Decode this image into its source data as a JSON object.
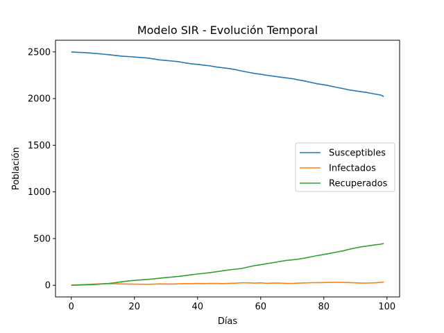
{
  "chart_data": {
    "type": "line",
    "title": "Modelo SIR - Evolución Temporal",
    "xlabel": "Días",
    "ylabel": "Población",
    "xlim": [
      -5,
      104
    ],
    "ylim": [
      -125,
      2625
    ],
    "xticks": [
      0,
      20,
      40,
      60,
      80,
      100
    ],
    "yticks": [
      0,
      500,
      1000,
      1500,
      2000,
      2500
    ],
    "grid": false,
    "legend_position": "center-right",
    "x": [
      0,
      2,
      4,
      6,
      8,
      10,
      12,
      14,
      16,
      18,
      20,
      22,
      24,
      26,
      28,
      30,
      32,
      34,
      36,
      38,
      40,
      42,
      44,
      46,
      48,
      50,
      52,
      54,
      56,
      58,
      60,
      62,
      64,
      66,
      68,
      70,
      72,
      74,
      76,
      78,
      80,
      82,
      84,
      86,
      88,
      90,
      92,
      94,
      96,
      98,
      99
    ],
    "series": [
      {
        "name": "Susceptibles",
        "color": "#1f77b4",
        "values": [
          2500,
          2496,
          2493,
          2488,
          2482,
          2476,
          2470,
          2462,
          2455,
          2450,
          2445,
          2440,
          2435,
          2425,
          2415,
          2408,
          2402,
          2395,
          2383,
          2373,
          2366,
          2358,
          2350,
          2338,
          2330,
          2322,
          2310,
          2295,
          2282,
          2270,
          2260,
          2250,
          2240,
          2230,
          2222,
          2213,
          2200,
          2188,
          2172,
          2158,
          2148,
          2135,
          2120,
          2108,
          2093,
          2083,
          2073,
          2063,
          2050,
          2038,
          2022
        ]
      },
      {
        "name": "Infectados",
        "color": "#ff7f0e",
        "values": [
          0,
          4,
          7,
          10,
          13,
          16,
          18,
          16,
          14,
          13,
          12,
          11,
          10,
          12,
          15,
          14,
          13,
          16,
          18,
          17,
          19,
          18,
          20,
          19,
          18,
          21,
          22,
          27,
          26,
          23,
          26,
          21,
          23,
          24,
          19,
          20,
          23,
          25,
          27,
          28,
          29,
          30,
          31,
          30,
          29,
          26,
          23,
          24,
          26,
          30,
          34
        ]
      },
      {
        "name": "Recuperados",
        "color": "#2ca02c",
        "values": [
          0,
          2,
          4,
          6,
          10,
          15,
          20,
          28,
          38,
          45,
          52,
          58,
          62,
          68,
          75,
          82,
          88,
          95,
          103,
          112,
          120,
          128,
          136,
          145,
          155,
          165,
          172,
          180,
          195,
          210,
          220,
          232,
          242,
          255,
          265,
          272,
          280,
          292,
          305,
          318,
          330,
          342,
          355,
          368,
          385,
          400,
          412,
          422,
          432,
          440,
          448
        ]
      }
    ]
  }
}
